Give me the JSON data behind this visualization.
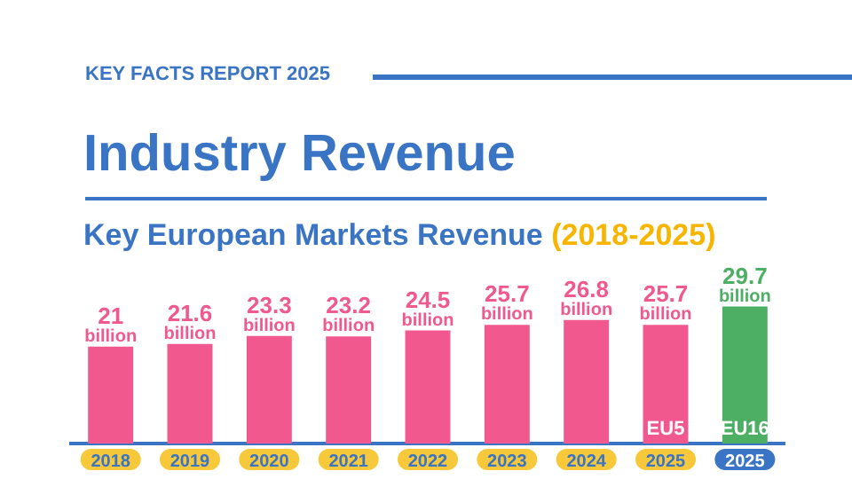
{
  "chart_data": {
    "type": "bar",
    "title": "Industry Revenue",
    "subtitle": "Key European Markets Revenue (2018-2025)",
    "annotations": [
      "KEY FACTS REPORT 2025"
    ],
    "categories": [
      "2018",
      "2019",
      "2020",
      "2021",
      "2022",
      "2023",
      "2024",
      "2025",
      "2025"
    ],
    "series": [
      {
        "name": "EU5",
        "color": "#f0588e",
        "values": [
          21,
          21.6,
          23.3,
          23.2,
          24.5,
          25.7,
          26.8,
          25.7,
          null
        ],
        "value_labels": [
          "21 billion",
          "21.6 billion",
          "23.3 billion",
          "23.2 billion",
          "24.5 billion",
          "25.7 billion",
          "26.8 billion",
          "25.7 billion",
          null
        ]
      },
      {
        "name": "EU16",
        "color": "#4caf64",
        "values": [
          null,
          null,
          null,
          null,
          null,
          null,
          null,
          null,
          29.7
        ],
        "value_labels": [
          null,
          null,
          null,
          null,
          null,
          null,
          null,
          null,
          "29.7 billion"
        ]
      }
    ],
    "grid": false,
    "legend": false
  }
}
